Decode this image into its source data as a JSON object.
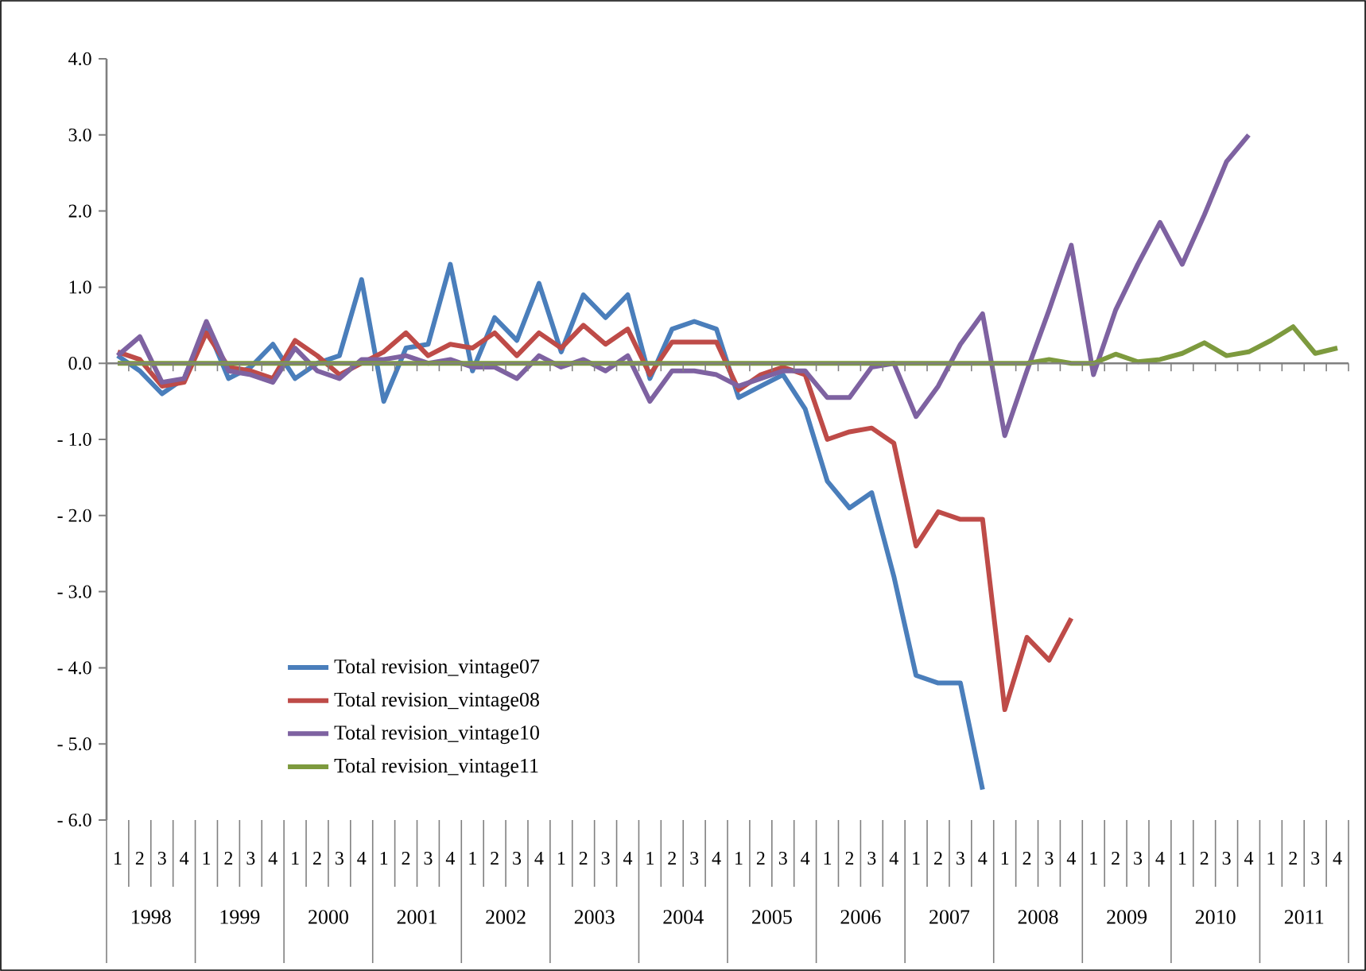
{
  "chart_data": {
    "type": "line",
    "categories": [
      "1",
      "2",
      "3",
      "4",
      "1",
      "2",
      "3",
      "4",
      "1",
      "2",
      "3",
      "4",
      "1",
      "2",
      "3",
      "4",
      "1",
      "2",
      "3",
      "4",
      "1",
      "2",
      "3",
      "4",
      "1",
      "2",
      "3",
      "4",
      "1",
      "2",
      "3",
      "4",
      "1",
      "2",
      "3",
      "4",
      "1",
      "2",
      "3",
      "4",
      "1",
      "2",
      "3",
      "4",
      "1",
      "2",
      "3",
      "4",
      "1",
      "2",
      "3",
      "4",
      "1",
      "2",
      "3",
      "4"
    ],
    "annotations": [
      "1998",
      "1999",
      "2000",
      "2001",
      "2002",
      "2003",
      "2004",
      "2005",
      "2006",
      "2007",
      "2008",
      "2009",
      "2010",
      "2011"
    ],
    "series": [
      {
        "name": "Total revision_vintage07",
        "color": "#4a7ebb",
        "values": [
          0.1,
          -0.1,
          -0.4,
          -0.2,
          0.5,
          -0.2,
          -0.05,
          0.25,
          -0.2,
          0.0,
          0.1,
          1.1,
          -0.5,
          0.2,
          0.25,
          1.3,
          -0.1,
          0.6,
          0.3,
          1.05,
          0.15,
          0.9,
          0.6,
          0.9,
          -0.2,
          0.45,
          0.55,
          0.45,
          -0.45,
          -0.3,
          -0.15,
          -0.6,
          -1.55,
          -1.9,
          -1.7,
          -2.8,
          -4.1,
          -4.2,
          -4.2,
          -5.6,
          null,
          null,
          null,
          null,
          null,
          null,
          null,
          null,
          null,
          null,
          null,
          null,
          null,
          null,
          null,
          null
        ]
      },
      {
        "name": "Total revision_vintage08",
        "color": "#be4b48",
        "values": [
          0.15,
          0.05,
          -0.3,
          -0.25,
          0.4,
          -0.05,
          -0.1,
          -0.2,
          0.3,
          0.1,
          -0.15,
          0.0,
          0.15,
          0.4,
          0.1,
          0.25,
          0.2,
          0.4,
          0.1,
          0.4,
          0.2,
          0.5,
          0.25,
          0.45,
          -0.15,
          0.28,
          0.28,
          0.28,
          -0.35,
          -0.15,
          -0.05,
          -0.15,
          -1.0,
          -0.9,
          -0.85,
          -1.05,
          -2.4,
          -1.95,
          -2.05,
          -2.05,
          -4.55,
          -3.6,
          -3.9,
          -3.35,
          null,
          null,
          null,
          null,
          null,
          null,
          null,
          null,
          null,
          null,
          null,
          null
        ]
      },
      {
        "name": "Total revision_vintage10",
        "color": "#7e62a1",
        "values": [
          0.1,
          0.35,
          -0.25,
          -0.2,
          0.55,
          -0.1,
          -0.15,
          -0.25,
          0.2,
          -0.1,
          -0.2,
          0.05,
          0.05,
          0.1,
          0.0,
          0.05,
          -0.05,
          -0.05,
          -0.2,
          0.1,
          -0.05,
          0.05,
          -0.1,
          0.1,
          -0.5,
          -0.1,
          -0.1,
          -0.15,
          -0.3,
          -0.2,
          -0.1,
          -0.1,
          -0.45,
          -0.45,
          -0.05,
          0.0,
          -0.7,
          -0.3,
          0.25,
          0.65,
          -0.95,
          -0.1,
          0.7,
          1.55,
          -0.15,
          0.7,
          1.3,
          1.85,
          1.3,
          1.95,
          2.65,
          3.0,
          null,
          null,
          null,
          null
        ]
      },
      {
        "name": "Total revision_vintage11",
        "color": "#7d9a3e",
        "values": [
          0.0,
          0.0,
          0.0,
          0.0,
          0.0,
          0.0,
          0.0,
          0.0,
          0.0,
          0.0,
          0.0,
          0.0,
          0.0,
          0.0,
          0.0,
          0.0,
          0.0,
          0.0,
          0.0,
          0.0,
          0.0,
          0.0,
          0.0,
          0.0,
          0.0,
          0.0,
          0.0,
          0.0,
          0.0,
          0.0,
          0.0,
          0.0,
          0.0,
          0.0,
          0.0,
          0.0,
          0.0,
          0.0,
          0.0,
          0.0,
          0.0,
          0.0,
          0.05,
          0.0,
          0.0,
          0.12,
          0.02,
          0.05,
          0.13,
          0.27,
          0.1,
          0.15,
          0.3,
          0.48,
          0.13,
          0.2
        ]
      }
    ],
    "ylim": [
      -6,
      4
    ],
    "yticks": [
      {
        "value": -6,
        "label": "- 6.0"
      },
      {
        "value": -5,
        "label": "- 5.0"
      },
      {
        "value": -4,
        "label": "- 4.0"
      },
      {
        "value": -3,
        "label": "- 3.0"
      },
      {
        "value": -2,
        "label": "- 2.0"
      },
      {
        "value": -1,
        "label": "- 1.0"
      },
      {
        "value": 0,
        "label": "0.0"
      },
      {
        "value": 1,
        "label": "1.0"
      },
      {
        "value": 2,
        "label": "2.0"
      },
      {
        "value": 3,
        "label": "3.0"
      },
      {
        "value": 4,
        "label": "4.0"
      }
    ],
    "legend": "bottom left",
    "marker": "none",
    "line_style": "solid"
  }
}
